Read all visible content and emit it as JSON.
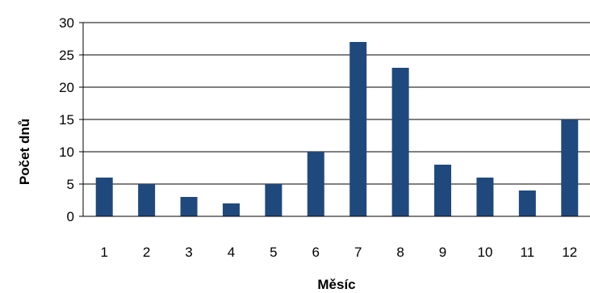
{
  "chart_data": {
    "type": "bar",
    "title": "",
    "xlabel": "Měsíc",
    "ylabel": "Počet dnů",
    "categories": [
      "1",
      "2",
      "3",
      "4",
      "5",
      "6",
      "7",
      "8",
      "9",
      "10",
      "11",
      "12"
    ],
    "values": [
      6,
      5,
      3,
      2,
      5,
      10,
      27,
      23,
      8,
      6,
      4,
      15
    ],
    "ylim": [
      0,
      30
    ],
    "yticks": [
      "0",
      "5",
      "10",
      "15",
      "20",
      "25",
      "30"
    ],
    "grid": true,
    "legend": "none",
    "bar_color": "#1f497d"
  }
}
